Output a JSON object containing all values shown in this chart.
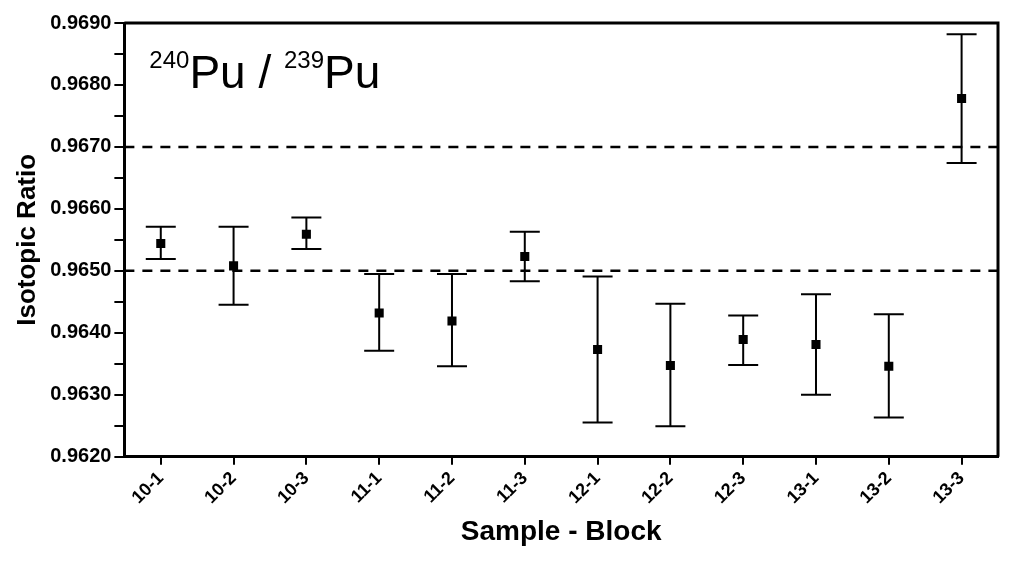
{
  "chart_data": {
    "type": "scatter",
    "xlabel": "Sample - Block",
    "ylabel": "Isotopic Ratio",
    "annotations": [
      "$^{240}$Pu / $^{239}$Pu"
    ],
    "categories": [
      "10-1",
      "10-2",
      "10-3",
      "11-1",
      "11-2",
      "11-3",
      "12-1",
      "12-2",
      "12-3",
      "13-1",
      "13-2",
      "13-3"
    ],
    "values": [
      0.96544,
      0.96508,
      0.96559,
      0.96432,
      0.96419,
      0.96523,
      0.96373,
      0.96347,
      0.96389,
      0.96381,
      0.96346,
      0.96778
    ],
    "errors": [
      [
        0.96519,
        0.96571
      ],
      [
        0.96445,
        0.96571
      ],
      [
        0.96535,
        0.96586
      ],
      [
        0.96371,
        0.96495
      ],
      [
        0.96346,
        0.96495
      ],
      [
        0.96483,
        0.96563
      ],
      [
        0.96255,
        0.96491
      ],
      [
        0.96249,
        0.96447
      ],
      [
        0.96348,
        0.96428
      ],
      [
        0.963,
        0.96462
      ],
      [
        0.96263,
        0.9643
      ],
      [
        0.96674,
        0.96882
      ]
    ],
    "color": "#000000",
    "marker": "square",
    "ylim": [
      0.962,
      0.969
    ],
    "yticks": [
      {
        "value": 0.962,
        "label": "0.9620"
      },
      {
        "value": 0.9625,
        "label": null
      },
      {
        "value": 0.963,
        "label": "0.9630"
      },
      {
        "value": 0.9635,
        "label": null
      },
      {
        "value": 0.964,
        "label": "0.9640"
      },
      {
        "value": 0.9645,
        "label": null
      },
      {
        "value": 0.965,
        "label": "0.9650"
      },
      {
        "value": 0.9655,
        "label": null
      },
      {
        "value": 0.966,
        "label": "0.9660"
      },
      {
        "value": 0.9665,
        "label": null
      },
      {
        "value": 0.967,
        "label": "0.9670"
      },
      {
        "value": 0.9675,
        "label": null
      },
      {
        "value": 0.968,
        "label": "0.9680"
      },
      {
        "value": 0.9685,
        "label": null
      },
      {
        "value": 0.969,
        "label": "0.9690"
      }
    ],
    "ref_lines": [
      {
        "axis": "y",
        "value": 0.965,
        "line_style": "dashed"
      },
      {
        "axis": "y",
        "value": 0.967,
        "line_style": "dashed"
      }
    ],
    "grid": false,
    "legend": false
  }
}
